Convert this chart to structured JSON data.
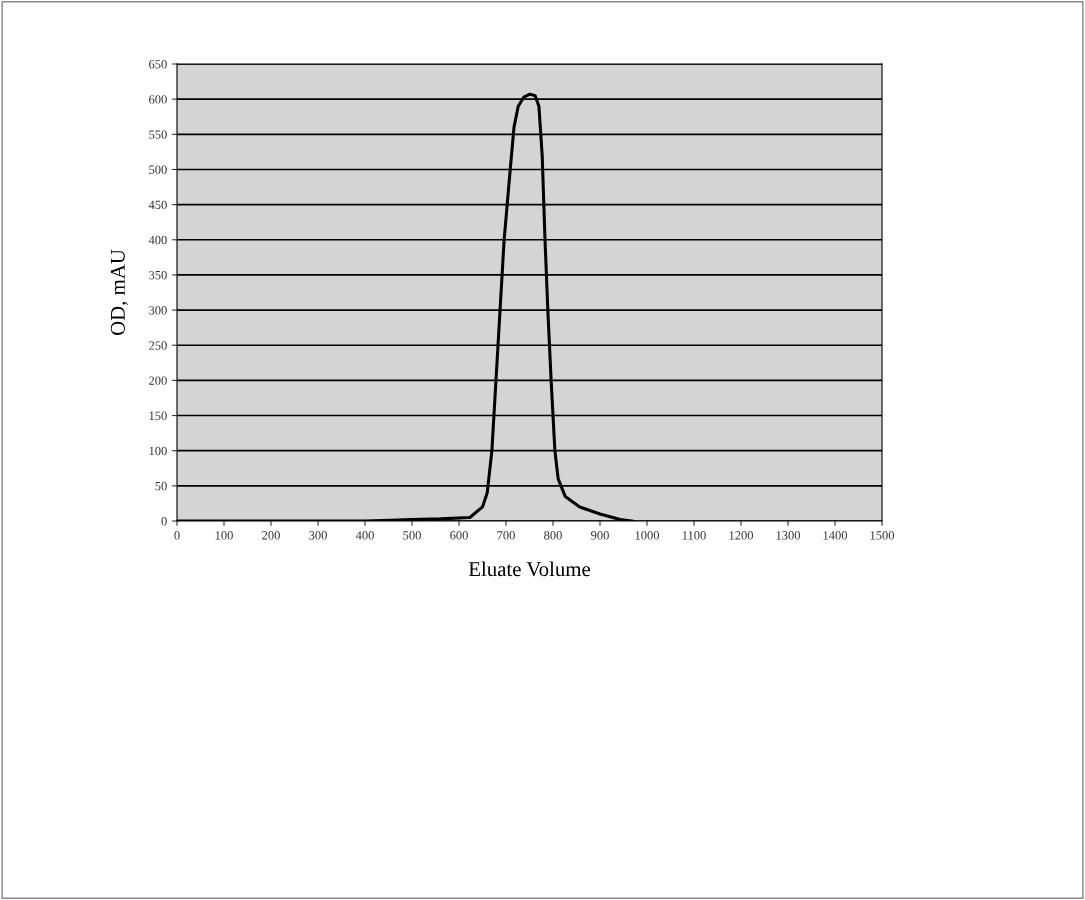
{
  "chart_data": {
    "type": "line",
    "xlabel": "Eluate Volume",
    "ylabel": "OD, mAU",
    "xlim": [
      0,
      1500
    ],
    "xticks": [
      0,
      100,
      200,
      300,
      400,
      500,
      600,
      700,
      800,
      900,
      1000,
      1100,
      1200,
      1300,
      1400,
      1500
    ],
    "ylim": [
      0,
      650
    ],
    "yticks": [
      0,
      50,
      100,
      150,
      200,
      250,
      300,
      350,
      400,
      450,
      500,
      550,
      600,
      650
    ],
    "grid": "y",
    "marker": "none",
    "line_style": "solid",
    "series": [
      {
        "color": "#000000",
        "x": [
          0,
          200,
          400,
          453,
          500,
          560,
          623,
          650,
          660,
          670,
          683,
          696,
          709,
          717,
          726,
          738,
          751,
          762,
          770,
          777,
          783,
          789,
          796,
          804,
          811,
          826,
          857,
          900,
          943,
          968
        ],
        "values": [
          0,
          0,
          0,
          1,
          2,
          3,
          5,
          20,
          40,
          100,
          250,
          400,
          500,
          560,
          590,
          603,
          607,
          605,
          590,
          520,
          400,
          300,
          200,
          100,
          60,
          35,
          20,
          10,
          2,
          0
        ]
      }
    ]
  }
}
